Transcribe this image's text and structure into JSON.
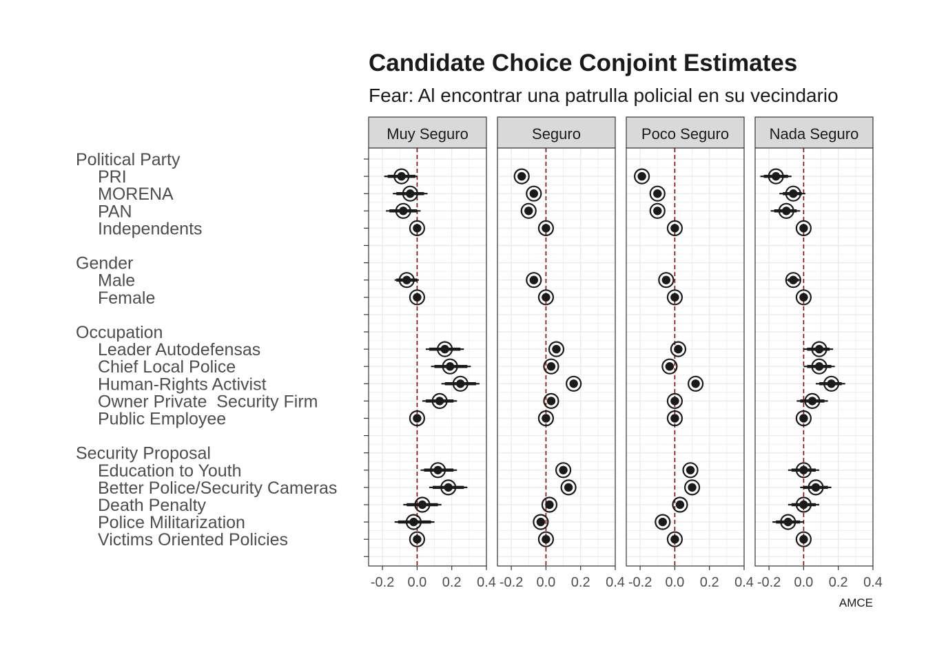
{
  "chart_data": {
    "type": "scatter",
    "title": "Candidate Choice Conjoint Estimates",
    "subtitle": "Fear: Al encontrar una patrulla policial en su vecindario",
    "xlabel": "AMCE",
    "xlim": [
      -0.28,
      0.4
    ],
    "x_ticks": [
      "-0.2",
      "0.0",
      "0.2",
      "0.4"
    ],
    "x_tick_values": [
      -0.2,
      0.0,
      0.2,
      0.4
    ],
    "reference_line": 0,
    "grid": true,
    "panels": [
      "Muy Seguro",
      "Seguro",
      "Poco Seguro",
      "Nada Seguro"
    ],
    "rows": [
      {
        "label": "Political Party",
        "header": true
      },
      {
        "label": "PRI",
        "header": false
      },
      {
        "label": "MORENA",
        "header": false
      },
      {
        "label": "PAN",
        "header": false
      },
      {
        "label": "Independents",
        "header": false
      },
      {
        "label": "",
        "header": false
      },
      {
        "label": "Gender",
        "header": true
      },
      {
        "label": "Male",
        "header": false
      },
      {
        "label": "Female",
        "header": false
      },
      {
        "label": "",
        "header": false
      },
      {
        "label": "Occupation",
        "header": true
      },
      {
        "label": "Leader Autodefensas",
        "header": false
      },
      {
        "label": "Chief Local Police",
        "header": false
      },
      {
        "label": "Human-Rights Activist",
        "header": false
      },
      {
        "label": "Owner Private  Security Firm",
        "header": false
      },
      {
        "label": "Public Employee",
        "header": false
      },
      {
        "label": "",
        "header": false
      },
      {
        "label": "Security Proposal",
        "header": true
      },
      {
        "label": "Education to Youth",
        "header": false
      },
      {
        "label": "Better Police/Security Cameras",
        "header": false
      },
      {
        "label": "Death Penalty",
        "header": false
      },
      {
        "label": "Police Militarization",
        "header": false
      },
      {
        "label": "Victims Oriented Policies",
        "header": false
      },
      {
        "label": "",
        "header": false
      }
    ],
    "series": [
      {
        "name": "Muy Seguro",
        "points": [
          {
            "row": 1,
            "est": -0.09,
            "lo95": -0.19,
            "hi95": 0.0,
            "lo90": -0.17,
            "hi90": -0.01
          },
          {
            "row": 2,
            "est": -0.04,
            "lo95": -0.14,
            "hi95": 0.06,
            "lo90": -0.12,
            "hi90": 0.04
          },
          {
            "row": 3,
            "est": -0.08,
            "lo95": -0.18,
            "hi95": 0.02,
            "lo90": -0.16,
            "hi90": 0.0
          },
          {
            "row": 4,
            "est": 0.0,
            "lo95": 0.0,
            "hi95": 0.0,
            "lo90": 0.0,
            "hi90": 0.0
          },
          {
            "row": 7,
            "est": -0.06,
            "lo95": -0.13,
            "hi95": 0.01,
            "lo90": -0.12,
            "hi90": 0.0
          },
          {
            "row": 8,
            "est": 0.0,
            "lo95": 0.0,
            "hi95": 0.0,
            "lo90": 0.0,
            "hi90": 0.0
          },
          {
            "row": 11,
            "est": 0.16,
            "lo95": 0.05,
            "hi95": 0.27,
            "lo90": 0.07,
            "hi90": 0.25
          },
          {
            "row": 12,
            "est": 0.19,
            "lo95": 0.08,
            "hi95": 0.31,
            "lo90": 0.1,
            "hi90": 0.29
          },
          {
            "row": 13,
            "est": 0.25,
            "lo95": 0.14,
            "hi95": 0.36,
            "lo90": 0.16,
            "hi90": 0.34
          },
          {
            "row": 14,
            "est": 0.13,
            "lo95": 0.03,
            "hi95": 0.23,
            "lo90": 0.05,
            "hi90": 0.21
          },
          {
            "row": 15,
            "est": 0.0,
            "lo95": 0.0,
            "hi95": 0.0,
            "lo90": 0.0,
            "hi90": 0.0
          },
          {
            "row": 18,
            "est": 0.12,
            "lo95": 0.02,
            "hi95": 0.23,
            "lo90": 0.04,
            "hi90": 0.21
          },
          {
            "row": 19,
            "est": 0.18,
            "lo95": 0.07,
            "hi95": 0.29,
            "lo90": 0.09,
            "hi90": 0.27
          },
          {
            "row": 20,
            "est": 0.03,
            "lo95": -0.08,
            "hi95": 0.14,
            "lo90": -0.06,
            "hi90": 0.12
          },
          {
            "row": 21,
            "est": -0.02,
            "lo95": -0.13,
            "hi95": 0.1,
            "lo90": -0.11,
            "hi90": 0.08
          },
          {
            "row": 22,
            "est": 0.0,
            "lo95": 0.0,
            "hi95": 0.0,
            "lo90": 0.0,
            "hi90": 0.0
          }
        ]
      },
      {
        "name": "Seguro",
        "points": [
          {
            "row": 1,
            "est": -0.14,
            "lo95": -0.16,
            "hi95": -0.12,
            "lo90": -0.15,
            "hi90": -0.13
          },
          {
            "row": 2,
            "est": -0.07,
            "lo95": -0.09,
            "hi95": -0.05,
            "lo90": -0.08,
            "hi90": -0.06
          },
          {
            "row": 3,
            "est": -0.1,
            "lo95": -0.12,
            "hi95": -0.08,
            "lo90": -0.11,
            "hi90": -0.09
          },
          {
            "row": 4,
            "est": 0.0,
            "lo95": 0.0,
            "hi95": 0.0,
            "lo90": 0.0,
            "hi90": 0.0
          },
          {
            "row": 7,
            "est": -0.07,
            "lo95": -0.09,
            "hi95": -0.05,
            "lo90": -0.08,
            "hi90": -0.06
          },
          {
            "row": 8,
            "est": 0.0,
            "lo95": 0.0,
            "hi95": 0.0,
            "lo90": 0.0,
            "hi90": 0.0
          },
          {
            "row": 11,
            "est": 0.06,
            "lo95": 0.04,
            "hi95": 0.08,
            "lo90": 0.05,
            "hi90": 0.07
          },
          {
            "row": 12,
            "est": 0.03,
            "lo95": 0.01,
            "hi95": 0.05,
            "lo90": 0.02,
            "hi90": 0.04
          },
          {
            "row": 13,
            "est": 0.16,
            "lo95": 0.14,
            "hi95": 0.18,
            "lo90": 0.15,
            "hi90": 0.17
          },
          {
            "row": 14,
            "est": 0.03,
            "lo95": 0.01,
            "hi95": 0.05,
            "lo90": 0.02,
            "hi90": 0.04
          },
          {
            "row": 15,
            "est": 0.0,
            "lo95": 0.0,
            "hi95": 0.0,
            "lo90": 0.0,
            "hi90": 0.0
          },
          {
            "row": 18,
            "est": 0.1,
            "lo95": 0.08,
            "hi95": 0.12,
            "lo90": 0.09,
            "hi90": 0.11
          },
          {
            "row": 19,
            "est": 0.13,
            "lo95": 0.11,
            "hi95": 0.15,
            "lo90": 0.12,
            "hi90": 0.14
          },
          {
            "row": 20,
            "est": 0.02,
            "lo95": 0.0,
            "hi95": 0.04,
            "lo90": 0.01,
            "hi90": 0.03
          },
          {
            "row": 21,
            "est": -0.03,
            "lo95": -0.05,
            "hi95": -0.01,
            "lo90": -0.04,
            "hi90": -0.02
          },
          {
            "row": 22,
            "est": 0.0,
            "lo95": 0.0,
            "hi95": 0.0,
            "lo90": 0.0,
            "hi90": 0.0
          }
        ]
      },
      {
        "name": "Poco Seguro",
        "points": [
          {
            "row": 1,
            "est": -0.19,
            "lo95": -0.21,
            "hi95": -0.17,
            "lo90": -0.2,
            "hi90": -0.18
          },
          {
            "row": 2,
            "est": -0.1,
            "lo95": -0.12,
            "hi95": -0.08,
            "lo90": -0.11,
            "hi90": -0.09
          },
          {
            "row": 3,
            "est": -0.1,
            "lo95": -0.12,
            "hi95": -0.08,
            "lo90": -0.11,
            "hi90": -0.09
          },
          {
            "row": 4,
            "est": 0.0,
            "lo95": 0.0,
            "hi95": 0.0,
            "lo90": 0.0,
            "hi90": 0.0
          },
          {
            "row": 7,
            "est": -0.05,
            "lo95": -0.07,
            "hi95": -0.03,
            "lo90": -0.06,
            "hi90": -0.04
          },
          {
            "row": 8,
            "est": 0.0,
            "lo95": 0.0,
            "hi95": 0.0,
            "lo90": 0.0,
            "hi90": 0.0
          },
          {
            "row": 11,
            "est": 0.02,
            "lo95": 0.0,
            "hi95": 0.04,
            "lo90": 0.01,
            "hi90": 0.03
          },
          {
            "row": 12,
            "est": -0.03,
            "lo95": -0.05,
            "hi95": -0.01,
            "lo90": -0.04,
            "hi90": -0.02
          },
          {
            "row": 13,
            "est": 0.12,
            "lo95": 0.1,
            "hi95": 0.14,
            "lo90": 0.11,
            "hi90": 0.13
          },
          {
            "row": 14,
            "est": 0.0,
            "lo95": -0.02,
            "hi95": 0.02,
            "lo90": -0.01,
            "hi90": 0.01
          },
          {
            "row": 15,
            "est": 0.0,
            "lo95": 0.0,
            "hi95": 0.0,
            "lo90": 0.0,
            "hi90": 0.0
          },
          {
            "row": 18,
            "est": 0.09,
            "lo95": 0.07,
            "hi95": 0.11,
            "lo90": 0.08,
            "hi90": 0.1
          },
          {
            "row": 19,
            "est": 0.1,
            "lo95": 0.08,
            "hi95": 0.12,
            "lo90": 0.09,
            "hi90": 0.11
          },
          {
            "row": 20,
            "est": 0.03,
            "lo95": 0.01,
            "hi95": 0.05,
            "lo90": 0.02,
            "hi90": 0.04
          },
          {
            "row": 21,
            "est": -0.07,
            "lo95": -0.09,
            "hi95": -0.05,
            "lo90": -0.08,
            "hi90": -0.06
          },
          {
            "row": 22,
            "est": 0.0,
            "lo95": 0.0,
            "hi95": 0.0,
            "lo90": 0.0,
            "hi90": 0.0
          }
        ]
      },
      {
        "name": "Nada Seguro",
        "points": [
          {
            "row": 1,
            "est": -0.16,
            "lo95": -0.25,
            "hi95": -0.07,
            "lo90": -0.23,
            "hi90": -0.09
          },
          {
            "row": 2,
            "est": -0.06,
            "lo95": -0.14,
            "hi95": 0.01,
            "lo90": -0.12,
            "hi90": -0.01
          },
          {
            "row": 3,
            "est": -0.1,
            "lo95": -0.19,
            "hi95": -0.02,
            "lo90": -0.17,
            "hi90": -0.04
          },
          {
            "row": 4,
            "est": 0.0,
            "lo95": 0.0,
            "hi95": 0.0,
            "lo90": 0.0,
            "hi90": 0.0
          },
          {
            "row": 7,
            "est": -0.06,
            "lo95": -0.1,
            "hi95": -0.02,
            "lo90": -0.09,
            "hi90": -0.03
          },
          {
            "row": 8,
            "est": 0.0,
            "lo95": 0.0,
            "hi95": 0.0,
            "lo90": 0.0,
            "hi90": 0.0
          },
          {
            "row": 11,
            "est": 0.09,
            "lo95": 0.0,
            "hi95": 0.17,
            "lo90": 0.02,
            "hi90": 0.15
          },
          {
            "row": 12,
            "est": 0.09,
            "lo95": 0.0,
            "hi95": 0.18,
            "lo90": 0.02,
            "hi90": 0.16
          },
          {
            "row": 13,
            "est": 0.16,
            "lo95": 0.07,
            "hi95": 0.24,
            "lo90": 0.09,
            "hi90": 0.22
          },
          {
            "row": 14,
            "est": 0.05,
            "lo95": -0.04,
            "hi95": 0.14,
            "lo90": -0.02,
            "hi90": 0.12
          },
          {
            "row": 15,
            "est": 0.0,
            "lo95": 0.0,
            "hi95": 0.0,
            "lo90": 0.0,
            "hi90": 0.0
          },
          {
            "row": 18,
            "est": 0.0,
            "lo95": -0.09,
            "hi95": 0.09,
            "lo90": -0.07,
            "hi90": 0.07
          },
          {
            "row": 19,
            "est": 0.07,
            "lo95": -0.02,
            "hi95": 0.16,
            "lo90": 0.0,
            "hi90": 0.14
          },
          {
            "row": 20,
            "est": 0.0,
            "lo95": -0.09,
            "hi95": 0.09,
            "lo90": -0.07,
            "hi90": 0.07
          },
          {
            "row": 21,
            "est": -0.09,
            "lo95": -0.18,
            "hi95": 0.0,
            "lo90": -0.16,
            "hi90": -0.02
          },
          {
            "row": 22,
            "est": 0.0,
            "lo95": 0.0,
            "hi95": 0.0,
            "lo90": 0.0,
            "hi90": 0.0
          }
        ]
      }
    ],
    "colors": {
      "strip_fill": "#d9d9d9",
      "grid": "#ebebeb",
      "reference_line": "#8b0000",
      "point": "#1a1a1a"
    }
  }
}
